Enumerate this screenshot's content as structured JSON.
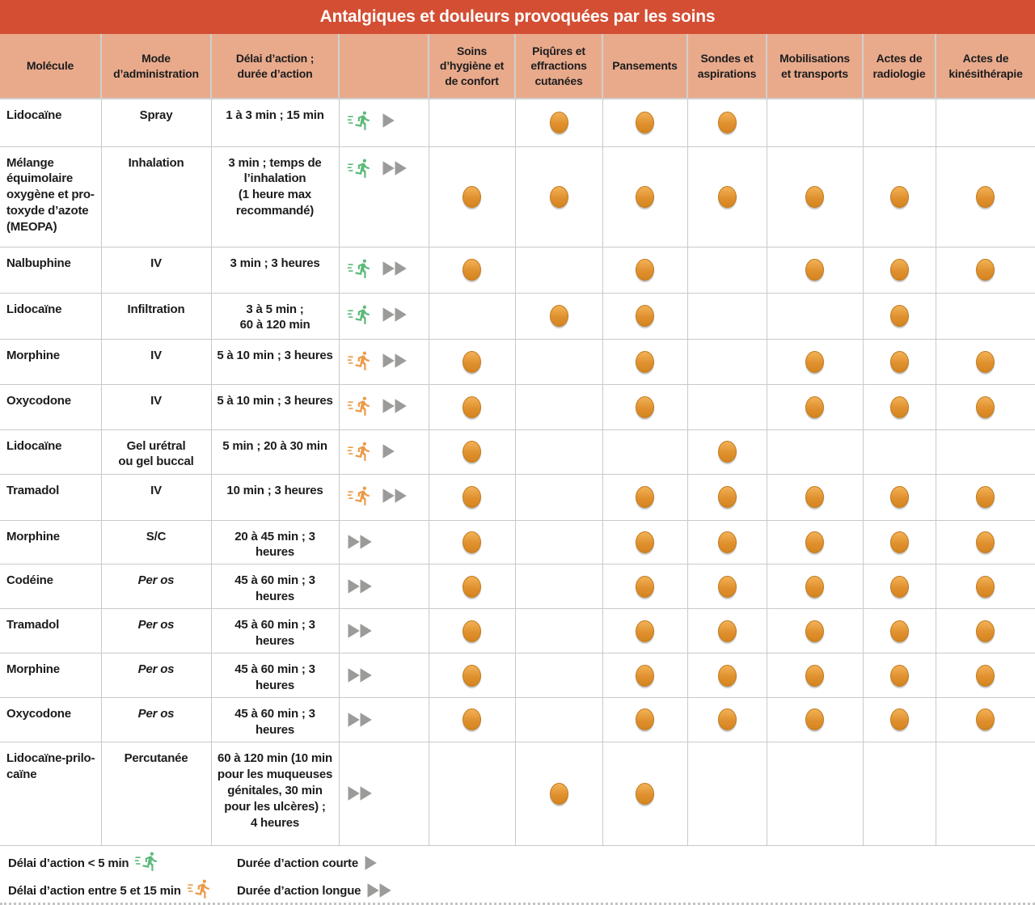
{
  "title": "Antalgiques et douleurs provoquées par les soins",
  "colors": {
    "title_bar": "#d34e33",
    "header_bg": "#e9aa8c",
    "grid_line": "#c9c9c9",
    "text": "#1c1c1c",
    "dot_orange": "#e0912f",
    "dot_border": "#c1791d",
    "triangle_gray": "#9b9b99",
    "runner_green": "#5db97a",
    "runner_orange": "#ec9a49",
    "title_text": "#ffffff"
  },
  "columns": {
    "molecule": "Molécule",
    "mode": "Mode\nd’administration",
    "delay": "Délai d’action ;\ndurée d’action",
    "icons": "",
    "care": [
      "Soins\nd’hygiène et\nde confort",
      "Piqûres et\neffractions\ncutanées",
      "Pansements",
      "Sondes et\naspirations",
      "Mobilisations\net transports",
      "Actes de\nradiologie",
      "Actes de\nkinésithérapie"
    ]
  },
  "rows": [
    {
      "molecule": "Lidocaïne",
      "mode": "Spray",
      "mode_italic": false,
      "delay": "1 à 3 min ; 15 min",
      "runner": "fast",
      "duration": "short",
      "dots": [
        0,
        1,
        1,
        1,
        0,
        0,
        0
      ]
    },
    {
      "molecule": "Mélange\néquimolaire\noxygène et pro-\ntoxyde d’azote\n(MEOPA)",
      "mode": "Inhalation",
      "mode_italic": false,
      "delay": "3 min ; temps de\nl’inhalation\n(1 heure max\nrecommandé)",
      "runner": "fast",
      "duration": "long",
      "dots": [
        1,
        1,
        1,
        1,
        1,
        1,
        1
      ]
    },
    {
      "molecule": "Nalbuphine",
      "mode": "IV",
      "mode_italic": false,
      "delay": "3 min ; 3 heures",
      "runner": "fast",
      "duration": "long",
      "dots": [
        1,
        0,
        1,
        0,
        1,
        1,
        1
      ]
    },
    {
      "molecule": "Lidocaïne",
      "mode": "Infiltration",
      "mode_italic": false,
      "delay": "3 à 5 min ;\n60 à 120 min",
      "runner": "fast",
      "duration": "long",
      "dots": [
        0,
        1,
        1,
        0,
        0,
        1,
        0
      ]
    },
    {
      "molecule": "Morphine",
      "mode": "IV",
      "mode_italic": false,
      "delay": "5 à 10 min ; 3 heures",
      "runner": "medium",
      "duration": "long",
      "dots": [
        1,
        0,
        1,
        0,
        1,
        1,
        1
      ]
    },
    {
      "molecule": "Oxycodone",
      "mode": "IV",
      "mode_italic": false,
      "delay": "5 à 10 min ; 3 heures",
      "runner": "medium",
      "duration": "long",
      "dots": [
        1,
        0,
        1,
        0,
        1,
        1,
        1
      ]
    },
    {
      "molecule": "Lidocaïne",
      "mode": "Gel urétral\nou gel buccal",
      "mode_italic": false,
      "delay": "5 min ; 20 à 30 min",
      "runner": "medium",
      "duration": "short",
      "dots": [
        1,
        0,
        0,
        1,
        0,
        0,
        0
      ]
    },
    {
      "molecule": "Tramadol",
      "mode": "IV",
      "mode_italic": false,
      "delay": "10 min ; 3 heures",
      "runner": "medium",
      "duration": "long",
      "dots": [
        1,
        0,
        1,
        1,
        1,
        1,
        1
      ]
    },
    {
      "molecule": "Morphine",
      "mode": "S/C",
      "mode_italic": false,
      "delay": "20 à 45 min ; 3 heures",
      "runner": null,
      "duration": "long",
      "dots": [
        1,
        0,
        1,
        1,
        1,
        1,
        1
      ]
    },
    {
      "molecule": "Codéine",
      "mode": "Per os",
      "mode_italic": true,
      "delay": "45 à 60 min ; 3 heures",
      "runner": null,
      "duration": "long",
      "dots": [
        1,
        0,
        1,
        1,
        1,
        1,
        1
      ]
    },
    {
      "molecule": "Tramadol",
      "mode": "Per os",
      "mode_italic": true,
      "delay": "45 à 60 min ; 3 heures",
      "runner": null,
      "duration": "long",
      "dots": [
        1,
        0,
        1,
        1,
        1,
        1,
        1
      ]
    },
    {
      "molecule": "Morphine",
      "mode": "Per os",
      "mode_italic": true,
      "delay": "45 à 60 min ; 3 heures",
      "runner": null,
      "duration": "long",
      "dots": [
        1,
        0,
        1,
        1,
        1,
        1,
        1
      ]
    },
    {
      "molecule": "Oxycodone",
      "mode": "Per os",
      "mode_italic": true,
      "delay": "45 à 60 min ; 3 heures",
      "runner": null,
      "duration": "long",
      "dots": [
        1,
        0,
        1,
        1,
        1,
        1,
        1
      ]
    },
    {
      "molecule": "Lidocaïne-prilo-\ncaïne",
      "mode": "Percutanée",
      "mode_italic": false,
      "delay": "60 à 120 min (10 min\npour les muqueuses\ngénitales, 30 min\npour les ulcères) ;\n4 heures",
      "runner": null,
      "duration": "long",
      "dots": [
        0,
        1,
        1,
        0,
        0,
        0,
        0
      ]
    }
  ],
  "legend": {
    "fast": "Délai d’action < 5 min",
    "medium": "Délai d’action entre 5 et 15 min",
    "short": "Durée d’action courte",
    "long": "Durée d’action longue"
  }
}
